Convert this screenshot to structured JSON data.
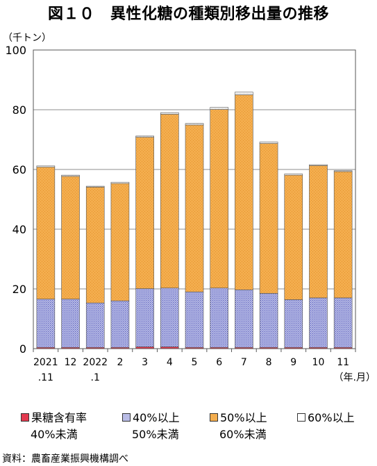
{
  "title": "図１０　異性化糖の種類別移出量の推移",
  "source": "資料：農畜産業振興機構調べ",
  "chart_data": {
    "type": "bar",
    "stacked": true,
    "unit_label": "（千トン）",
    "x_unit_label": "（年.月）",
    "categories": [
      "2021\n.11",
      "12",
      "2022\n.1",
      "2",
      "3",
      "4",
      "5",
      "6",
      "7",
      "8",
      "9",
      "10",
      "11"
    ],
    "ylim": [
      0,
      100
    ],
    "yticks": [
      "0",
      "20",
      "40",
      "60",
      "80",
      "100"
    ],
    "grid": true,
    "legend_position": "bottom",
    "series": [
      {
        "name": "果糖含有率40%未満",
        "name_line1": "果糖含有率",
        "name_line2": "40%未満",
        "color": "#d8213a",
        "values": [
          0.4,
          0.4,
          0.4,
          0.4,
          0.6,
          0.6,
          0.4,
          0.4,
          0.4,
          0.4,
          0.4,
          0.4,
          0.4
        ]
      },
      {
        "name": "40%以上50%未満",
        "name_line1": "40%以上",
        "name_line2": "50%未満",
        "color": "#8c8fd2",
        "values": [
          16.2,
          16.2,
          14.9,
          15.6,
          19.5,
          19.7,
          18.6,
          19.9,
          19.3,
          18.1,
          16.0,
          16.6,
          16.6
        ]
      },
      {
        "name": "50%以上60%未満",
        "name_line1": "50%以上",
        "name_line2": "60%未満",
        "color": "#f0a848",
        "values": [
          44.2,
          41.1,
          38.8,
          39.3,
          50.7,
          58.2,
          55.9,
          59.8,
          65.3,
          50.2,
          41.7,
          44.3,
          42.3
        ]
      },
      {
        "name": "60%以上",
        "name_line1": "60%以上",
        "name_line2": "",
        "color": "#f2f2f2",
        "values": [
          0.4,
          0.4,
          0.3,
          0.4,
          0.4,
          0.5,
          0.5,
          0.7,
          0.9,
          0.5,
          0.4,
          0.3,
          0.3
        ]
      }
    ]
  }
}
